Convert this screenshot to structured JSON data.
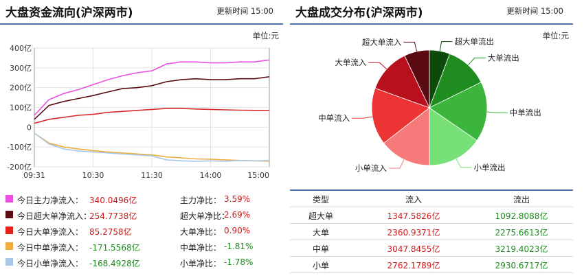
{
  "left_panel": {
    "title": "大盘资金流向(沪深两市)",
    "update_label": "更新时间 15:00",
    "unit_label": "单位:元",
    "legend": [
      {
        "color": "#ea4fe0",
        "label": "今日主力净流入：",
        "value": "340.0496亿",
        "ratio_label": "主力净比：",
        "ratio": "3.59%"
      },
      {
        "color": "#5b0b12",
        "label": "今日超大单净流入：",
        "value": "254.7738亿",
        "ratio_label": "超大单净比：",
        "ratio": "2.69%"
      },
      {
        "color": "#e3221c",
        "label": "今日大单净流入：",
        "value": "85.2758亿",
        "ratio_label": "大单净比：",
        "ratio": "0.90%"
      },
      {
        "color": "#f0ad3c",
        "label": "今日中单净流入：",
        "value": "-171.5568亿",
        "ratio_label": "中单净比：",
        "ratio": "-1.81%"
      },
      {
        "color": "#a8c8e8",
        "label": "今日小单净流入：",
        "value": "-168.4928亿",
        "ratio_label": "小单净比：",
        "ratio": "-1.78%"
      }
    ]
  },
  "right_panel": {
    "title": "大盘成交分布(沪深两市)",
    "update_label": "更新时间 15:00",
    "unit_label": "单位:元",
    "table_headers": [
      "类型",
      "流入",
      "流出"
    ],
    "table_rows": [
      {
        "type": "超大单",
        "in": "1347.5826亿",
        "out": "1092.8088亿"
      },
      {
        "type": "大单",
        "in": "2360.9371亿",
        "out": "2275.6613亿"
      },
      {
        "type": "中单",
        "in": "3047.8455亿",
        "out": "3219.4023亿"
      },
      {
        "type": "小单",
        "in": "2762.1789亿",
        "out": "2930.6717亿"
      }
    ]
  },
  "chart_data": [
    {
      "type": "line",
      "title": "",
      "xlabel": "",
      "ylabel": "",
      "x_ticks": [
        "09:31",
        "10:30",
        "11:30",
        "14:00",
        "15:00"
      ],
      "y_ticks": [
        "400亿",
        "300亿",
        "200亿",
        "100亿",
        "0",
        "-100亿",
        "-200亿"
      ],
      "ylim": [
        -200,
        400
      ],
      "grid": true,
      "x": [
        "09:31",
        "09:45",
        "10:00",
        "10:15",
        "10:30",
        "10:45",
        "11:00",
        "11:15",
        "11:30",
        "13:15",
        "13:30",
        "13:45",
        "14:00",
        "14:15",
        "14:30",
        "14:45",
        "15:00"
      ],
      "series": [
        {
          "name": "今日主力净流入",
          "color": "#ea4fe0",
          "values": [
            60,
            140,
            170,
            190,
            215,
            240,
            260,
            275,
            285,
            320,
            330,
            330,
            325,
            325,
            330,
            330,
            340
          ]
        },
        {
          "name": "今日超大单净流入",
          "color": "#5b0b12",
          "values": [
            40,
            110,
            130,
            145,
            160,
            178,
            195,
            200,
            210,
            230,
            240,
            245,
            240,
            240,
            245,
            245,
            255
          ]
        },
        {
          "name": "今日大单净流入",
          "color": "#d82a2a",
          "values": [
            20,
            40,
            50,
            60,
            65,
            75,
            80,
            85,
            90,
            95,
            95,
            92,
            90,
            88,
            86,
            85,
            85
          ]
        },
        {
          "name": "今日中单净流入",
          "color": "#f0ad3c",
          "values": [
            -30,
            -80,
            -100,
            -110,
            -118,
            -125,
            -130,
            -135,
            -140,
            -150,
            -155,
            -160,
            -162,
            -165,
            -168,
            -170,
            -172
          ]
        },
        {
          "name": "今日小单净流入",
          "color": "#a8c8e8",
          "values": [
            -30,
            -85,
            -110,
            -120,
            -125,
            -130,
            -135,
            -140,
            -145,
            -165,
            -170,
            -172,
            -170,
            -172,
            -168,
            -170,
            -168
          ]
        }
      ]
    },
    {
      "type": "pie",
      "title": "",
      "slices": [
        {
          "label": "超大单流出",
          "value": 1092.8088,
          "color": "#0c4a0c"
        },
        {
          "label": "大单流出",
          "value": 2275.6613,
          "color": "#1e8c1e"
        },
        {
          "label": "中单流出",
          "value": 3219.4023,
          "color": "#3bb53b"
        },
        {
          "label": "小单流出",
          "value": 2930.6717,
          "color": "#77e077"
        },
        {
          "label": "小单流入",
          "value": 2762.1789,
          "color": "#f77a7a"
        },
        {
          "label": "中单流入",
          "value": 3047.8455,
          "color": "#ec3434"
        },
        {
          "label": "大单流入",
          "value": 2360.9371,
          "color": "#b8101c"
        },
        {
          "label": "超大单流入",
          "value": 1347.5826,
          "color": "#5a0a10"
        }
      ]
    }
  ]
}
